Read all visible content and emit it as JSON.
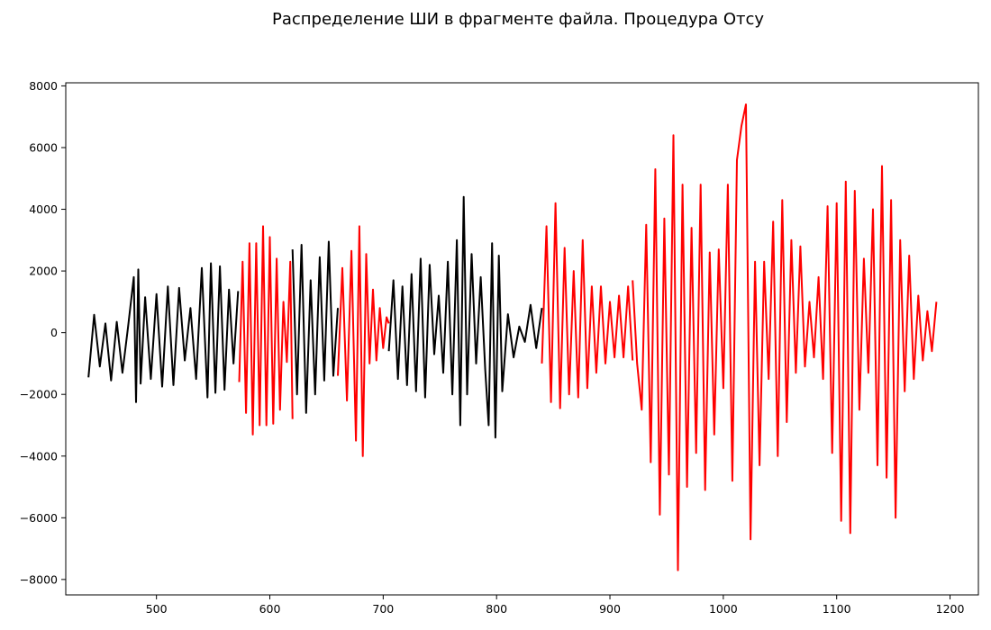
{
  "chart_data": {
    "type": "line",
    "title": "Распределение ШИ в фрагменте файла. Процедура Отсу",
    "xlabel": "",
    "ylabel": "",
    "xlim": [
      420,
      1225
    ],
    "ylim": [
      -8500,
      8100
    ],
    "xticks": [
      500,
      600,
      700,
      800,
      900,
      1000,
      1100,
      1200
    ],
    "yticks": [
      -8000,
      -6000,
      -4000,
      -2000,
      0,
      2000,
      4000,
      6000,
      8000
    ],
    "grid": false,
    "colors": {
      "low": "#000000",
      "high": "#ff0000"
    },
    "segments": [
      {
        "start": 440,
        "end": 573,
        "color": "#000000",
        "points": [
          [
            440,
            -1450
          ],
          [
            445,
            580
          ],
          [
            450,
            -1100
          ],
          [
            455,
            300
          ],
          [
            460,
            -1550
          ],
          [
            465,
            350
          ],
          [
            470,
            -1300
          ],
          [
            475,
            200
          ],
          [
            480,
            1800
          ],
          [
            482,
            -2250
          ],
          [
            484,
            2050
          ],
          [
            486,
            -1650
          ],
          [
            490,
            1150
          ],
          [
            495,
            -1500
          ],
          [
            500,
            1250
          ],
          [
            505,
            -1750
          ],
          [
            510,
            1500
          ],
          [
            515,
            -1700
          ],
          [
            520,
            1450
          ],
          [
            525,
            -900
          ],
          [
            530,
            800
          ],
          [
            535,
            -1500
          ],
          [
            540,
            2100
          ],
          [
            545,
            -2100
          ],
          [
            548,
            2250
          ],
          [
            552,
            -1950
          ],
          [
            556,
            2150
          ],
          [
            560,
            -1850
          ],
          [
            564,
            1400
          ],
          [
            568,
            -1000
          ],
          [
            572,
            1350
          ]
        ]
      },
      {
        "start": 573,
        "end": 620,
        "color": "#ff0000",
        "points": [
          [
            573,
            -1600
          ],
          [
            576,
            2300
          ],
          [
            579,
            -2600
          ],
          [
            582,
            2900
          ],
          [
            585,
            -3300
          ],
          [
            588,
            2900
          ],
          [
            591,
            -3000
          ],
          [
            594,
            3450
          ],
          [
            597,
            -3000
          ],
          [
            600,
            3100
          ],
          [
            603,
            -2950
          ],
          [
            606,
            2400
          ],
          [
            609,
            -2500
          ],
          [
            612,
            1000
          ],
          [
            615,
            -950
          ],
          [
            618,
            2300
          ],
          [
            620,
            -2800
          ]
        ]
      },
      {
        "start": 620,
        "end": 660,
        "color": "#000000",
        "points": [
          [
            620,
            2700
          ],
          [
            624,
            -2000
          ],
          [
            628,
            2850
          ],
          [
            632,
            -2600
          ],
          [
            636,
            1700
          ],
          [
            640,
            -2000
          ],
          [
            644,
            2450
          ],
          [
            648,
            -1550
          ],
          [
            652,
            2950
          ],
          [
            656,
            -1400
          ],
          [
            660,
            800
          ]
        ]
      },
      {
        "start": 660,
        "end": 705,
        "color": "#ff0000",
        "points": [
          [
            660,
            -1400
          ],
          [
            664,
            2100
          ],
          [
            668,
            -2200
          ],
          [
            672,
            2650
          ],
          [
            676,
            -3500
          ],
          [
            679,
            3450
          ],
          [
            682,
            -4000
          ],
          [
            685,
            2550
          ],
          [
            688,
            -1000
          ],
          [
            691,
            1400
          ],
          [
            694,
            -900
          ],
          [
            697,
            800
          ],
          [
            700,
            -500
          ],
          [
            703,
            500
          ],
          [
            705,
            300
          ]
        ]
      },
      {
        "start": 705,
        "end": 840,
        "color": "#000000",
        "points": [
          [
            705,
            -600
          ],
          [
            709,
            1700
          ],
          [
            713,
            -1500
          ],
          [
            717,
            1500
          ],
          [
            721,
            -1700
          ],
          [
            725,
            1900
          ],
          [
            729,
            -1900
          ],
          [
            733,
            2400
          ],
          [
            737,
            -2100
          ],
          [
            741,
            2200
          ],
          [
            745,
            -700
          ],
          [
            749,
            1200
          ],
          [
            753,
            -1300
          ],
          [
            757,
            2300
          ],
          [
            761,
            -2000
          ],
          [
            765,
            3000
          ],
          [
            768,
            -3000
          ],
          [
            771,
            4400
          ],
          [
            774,
            -2000
          ],
          [
            778,
            2550
          ],
          [
            782,
            -1000
          ],
          [
            786,
            1800
          ],
          [
            790,
            -1200
          ],
          [
            793,
            -3000
          ],
          [
            796,
            2900
          ],
          [
            799,
            -3400
          ],
          [
            802,
            2500
          ],
          [
            805,
            -1900
          ],
          [
            810,
            600
          ],
          [
            815,
            -800
          ],
          [
            820,
            200
          ],
          [
            825,
            -300
          ],
          [
            830,
            900
          ],
          [
            835,
            -500
          ],
          [
            840,
            800
          ]
        ]
      },
      {
        "start": 840,
        "end": 920,
        "color": "#ff0000",
        "points": [
          [
            840,
            -1000
          ],
          [
            844,
            3450
          ],
          [
            848,
            -2250
          ],
          [
            852,
            4200
          ],
          [
            856,
            -2450
          ],
          [
            860,
            2750
          ],
          [
            864,
            -2000
          ],
          [
            868,
            2000
          ],
          [
            872,
            -2100
          ],
          [
            876,
            3000
          ],
          [
            880,
            -1800
          ],
          [
            884,
            1500
          ],
          [
            888,
            -1300
          ],
          [
            892,
            1500
          ],
          [
            896,
            -1000
          ],
          [
            900,
            1000
          ],
          [
            904,
            -800
          ],
          [
            908,
            1200
          ],
          [
            912,
            -800
          ],
          [
            916,
            1500
          ],
          [
            920,
            -900
          ]
        ]
      },
      {
        "start": 920,
        "end": 1190,
        "color": "#ff0000",
        "points": [
          [
            920,
            1700
          ],
          [
            924,
            -1000
          ],
          [
            928,
            -2500
          ],
          [
            932,
            3500
          ],
          [
            936,
            -4200
          ],
          [
            940,
            5300
          ],
          [
            944,
            -5900
          ],
          [
            948,
            3700
          ],
          [
            952,
            -4600
          ],
          [
            956,
            6400
          ],
          [
            960,
            -7700
          ],
          [
            964,
            4800
          ],
          [
            968,
            -5000
          ],
          [
            972,
            3400
          ],
          [
            976,
            -3900
          ],
          [
            980,
            4800
          ],
          [
            984,
            -5100
          ],
          [
            988,
            2600
          ],
          [
            992,
            -3300
          ],
          [
            996,
            2700
          ],
          [
            1000,
            -1800
          ],
          [
            1004,
            4800
          ],
          [
            1008,
            -4800
          ],
          [
            1012,
            5600
          ],
          [
            1016,
            6700
          ],
          [
            1020,
            7400
          ],
          [
            1024,
            -6700
          ],
          [
            1028,
            2300
          ],
          [
            1032,
            -4300
          ],
          [
            1036,
            2300
          ],
          [
            1040,
            -1500
          ],
          [
            1044,
            3600
          ],
          [
            1048,
            -4000
          ],
          [
            1052,
            4300
          ],
          [
            1056,
            -2900
          ],
          [
            1060,
            3000
          ],
          [
            1064,
            -1300
          ],
          [
            1068,
            2800
          ],
          [
            1072,
            -1100
          ],
          [
            1076,
            1000
          ],
          [
            1080,
            -800
          ],
          [
            1084,
            1800
          ],
          [
            1088,
            -1500
          ],
          [
            1092,
            4100
          ],
          [
            1096,
            -3900
          ],
          [
            1100,
            4200
          ],
          [
            1104,
            -6100
          ],
          [
            1108,
            4900
          ],
          [
            1112,
            -6500
          ],
          [
            1116,
            4600
          ],
          [
            1120,
            -2500
          ],
          [
            1124,
            2400
          ],
          [
            1128,
            -1300
          ],
          [
            1132,
            4000
          ],
          [
            1136,
            -4300
          ],
          [
            1140,
            5400
          ],
          [
            1144,
            -4700
          ],
          [
            1148,
            4300
          ],
          [
            1152,
            -6000
          ],
          [
            1156,
            3000
          ],
          [
            1160,
            -1900
          ],
          [
            1164,
            2500
          ],
          [
            1168,
            -1500
          ],
          [
            1172,
            1200
          ],
          [
            1176,
            -900
          ],
          [
            1180,
            700
          ],
          [
            1184,
            -600
          ],
          [
            1188,
            1000
          ]
        ]
      }
    ]
  }
}
